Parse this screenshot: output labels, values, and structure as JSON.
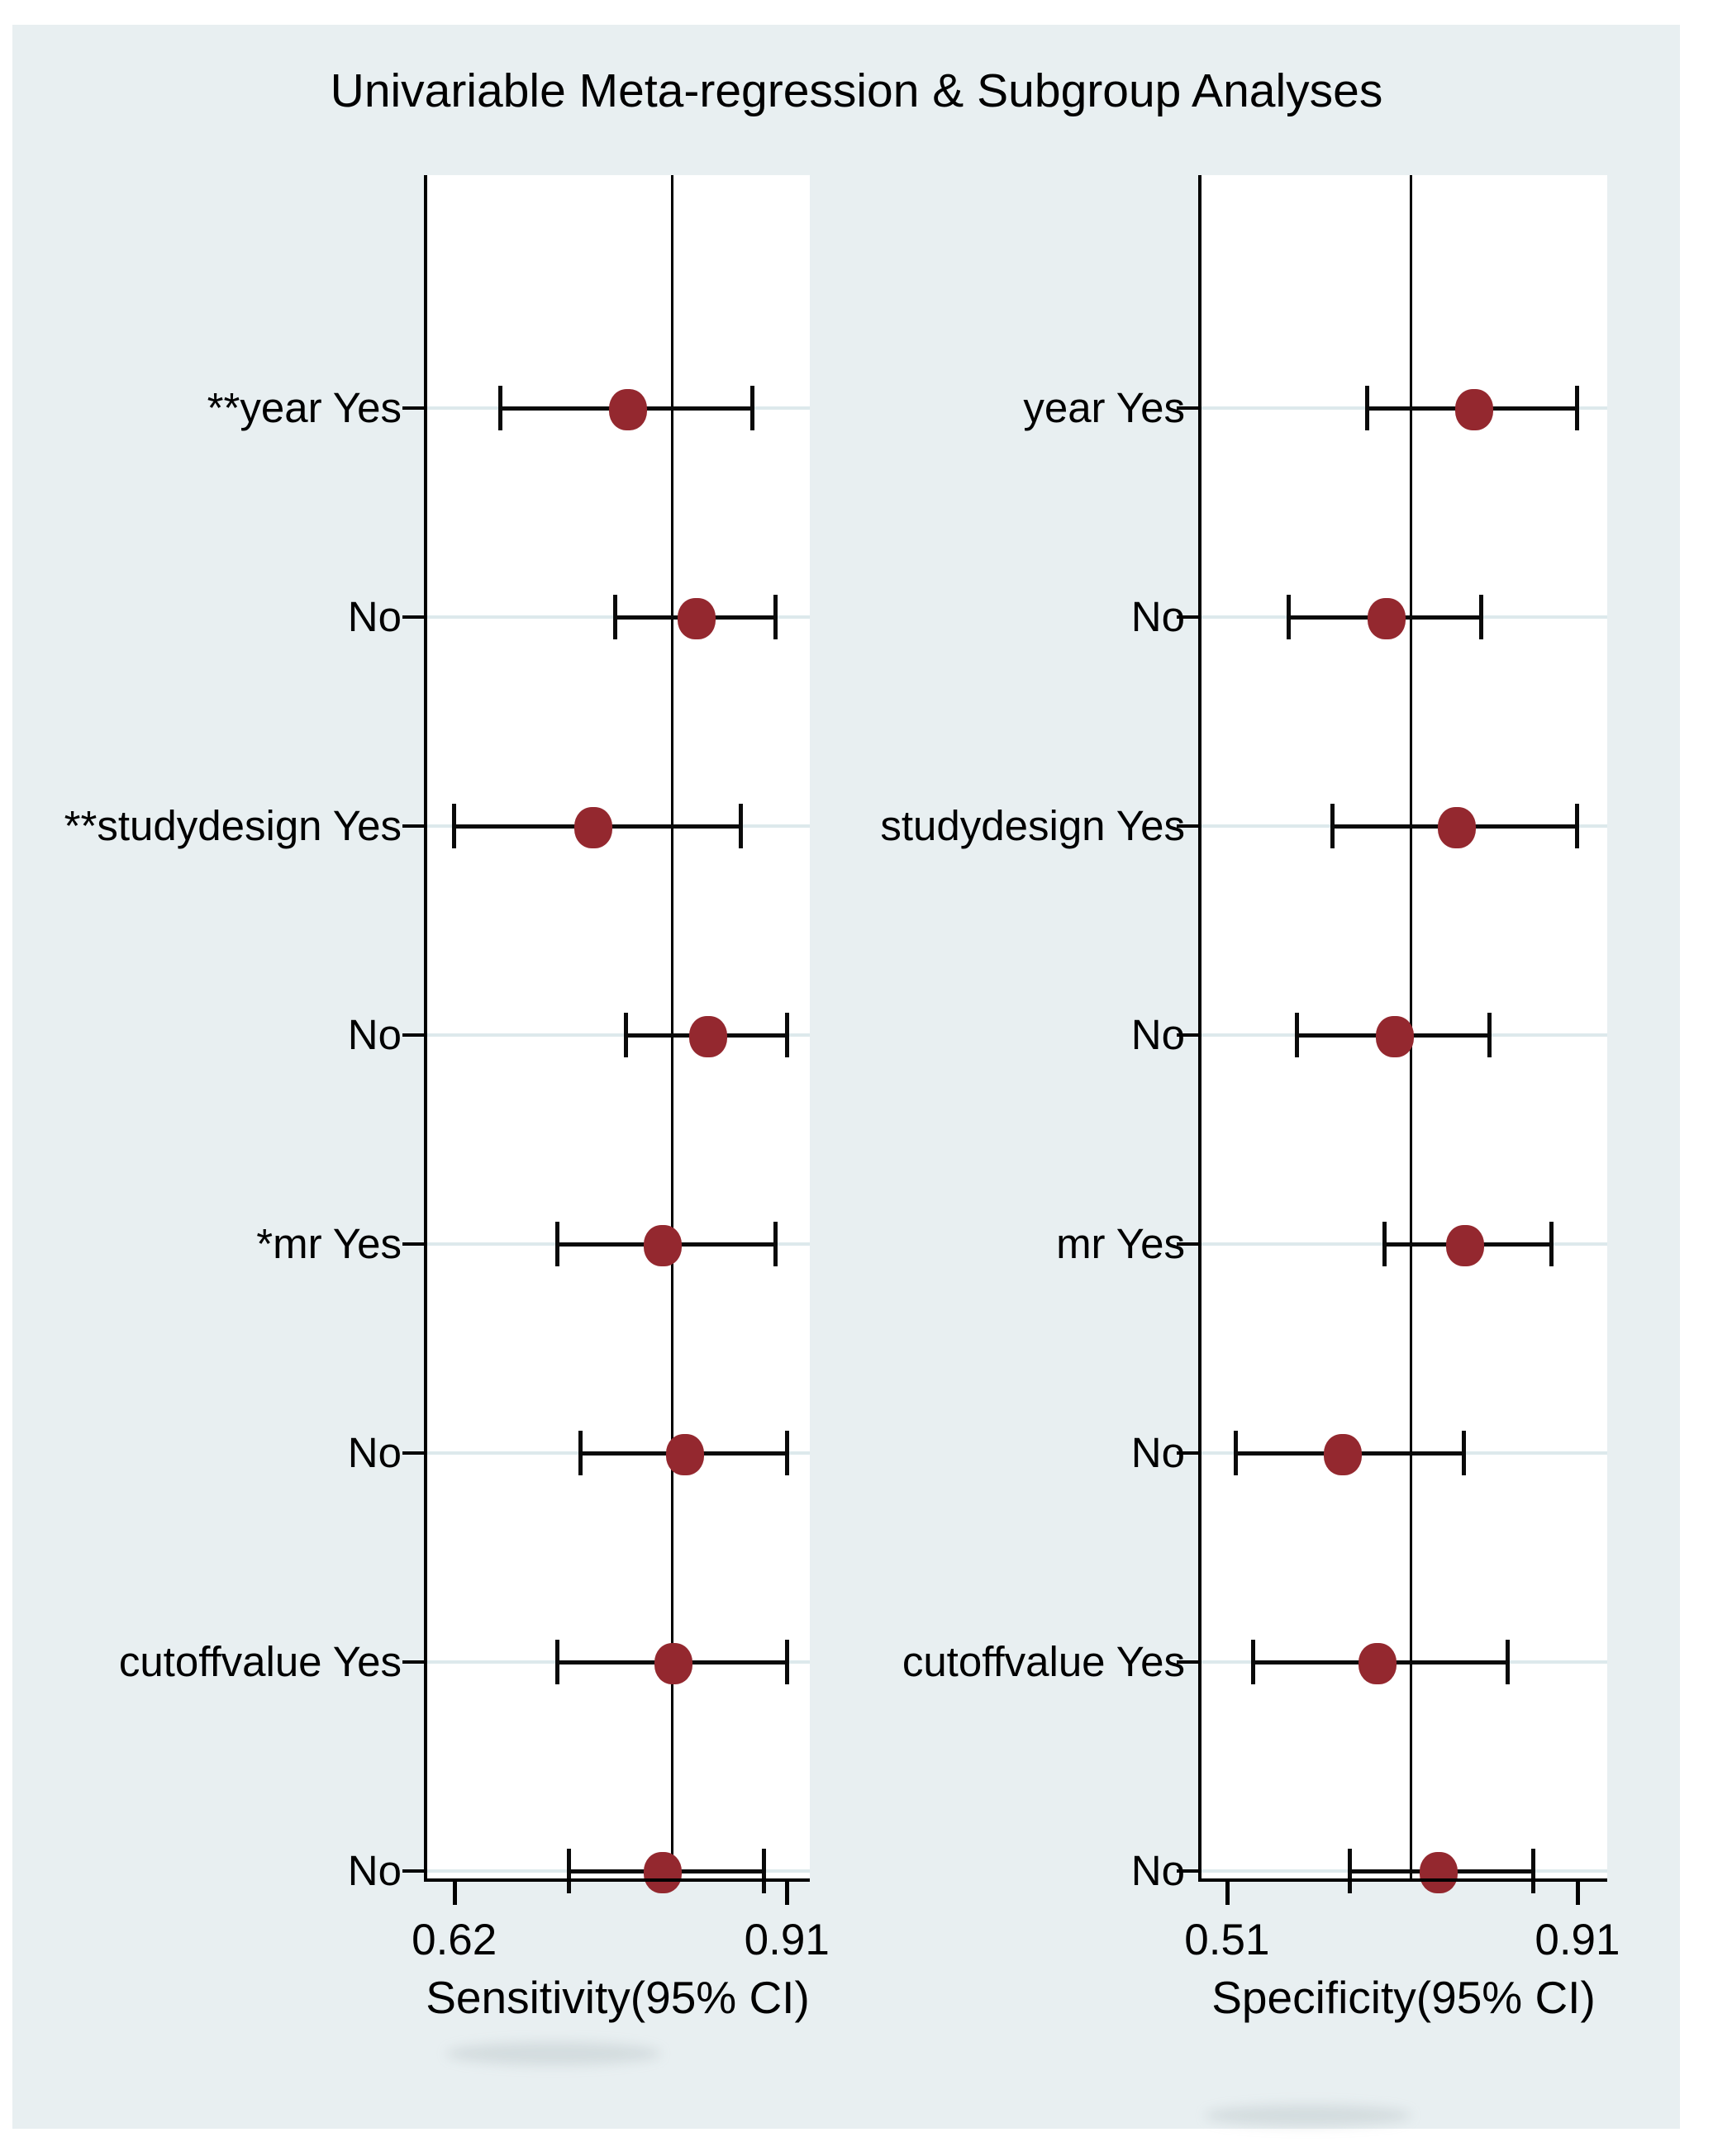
{
  "title": "Univariable Meta-regression & Subgroup Analyses",
  "colors": {
    "figure_background": "#e8eff1",
    "plot_background": "#ffffff",
    "axis_line": "#000000",
    "text": "#000000",
    "marker": "#94282f",
    "ci_line": "#0a0a0a",
    "row_guide": "#dde9ec",
    "reference_line": "#000000"
  },
  "chart_data": [
    {
      "type": "scatter",
      "name": "sensitivity-forest",
      "xlabel": "Sensitivity(95% CI)",
      "xlim": [
        0.595,
        0.93
      ],
      "ticks": [
        {
          "value": 0.62,
          "label": "0.62"
        },
        {
          "value": 0.91,
          "label": "0.91"
        }
      ],
      "reference_line": 0.81,
      "grid": "row-guides",
      "legend": "none",
      "rows": [
        {
          "label": "**year Yes",
          "estimate": 0.77,
          "ci_low": 0.66,
          "ci_high": 0.88
        },
        {
          "label": "No",
          "estimate": 0.83,
          "ci_low": 0.76,
          "ci_high": 0.9
        },
        {
          "label": "**studydesign Yes",
          "estimate": 0.74,
          "ci_low": 0.62,
          "ci_high": 0.87
        },
        {
          "label": "No",
          "estimate": 0.84,
          "ci_low": 0.77,
          "ci_high": 0.91
        },
        {
          "label": "*mr Yes",
          "estimate": 0.8,
          "ci_low": 0.71,
          "ci_high": 0.9
        },
        {
          "label": "No",
          "estimate": 0.82,
          "ci_low": 0.73,
          "ci_high": 0.91
        },
        {
          "label": "cutoffvalue Yes",
          "estimate": 0.81,
          "ci_low": 0.71,
          "ci_high": 0.91
        },
        {
          "label": "No",
          "estimate": 0.8,
          "ci_low": 0.72,
          "ci_high": 0.89
        }
      ]
    },
    {
      "type": "scatter",
      "name": "specificity-forest",
      "xlabel": "Specificity(95% CI)",
      "xlim": [
        0.479,
        0.944
      ],
      "ticks": [
        {
          "value": 0.51,
          "label": "0.51"
        },
        {
          "value": 0.91,
          "label": "0.91"
        }
      ],
      "reference_line": 0.72,
      "grid": "row-guides",
      "legend": "none",
      "rows": [
        {
          "label": "year Yes",
          "estimate": 0.79,
          "ci_low": 0.67,
          "ci_high": 0.91
        },
        {
          "label": "No",
          "estimate": 0.69,
          "ci_low": 0.58,
          "ci_high": 0.8
        },
        {
          "label": "studydesign Yes",
          "estimate": 0.77,
          "ci_low": 0.63,
          "ci_high": 0.91
        },
        {
          "label": "No",
          "estimate": 0.7,
          "ci_low": 0.59,
          "ci_high": 0.81
        },
        {
          "label": "mr Yes",
          "estimate": 0.78,
          "ci_low": 0.69,
          "ci_high": 0.88
        },
        {
          "label": "No",
          "estimate": 0.64,
          "ci_low": 0.52,
          "ci_high": 0.78
        },
        {
          "label": "cutoffvalue Yes",
          "estimate": 0.68,
          "ci_low": 0.54,
          "ci_high": 0.83
        },
        {
          "label": "No",
          "estimate": 0.75,
          "ci_low": 0.65,
          "ci_high": 0.86
        }
      ]
    }
  ]
}
